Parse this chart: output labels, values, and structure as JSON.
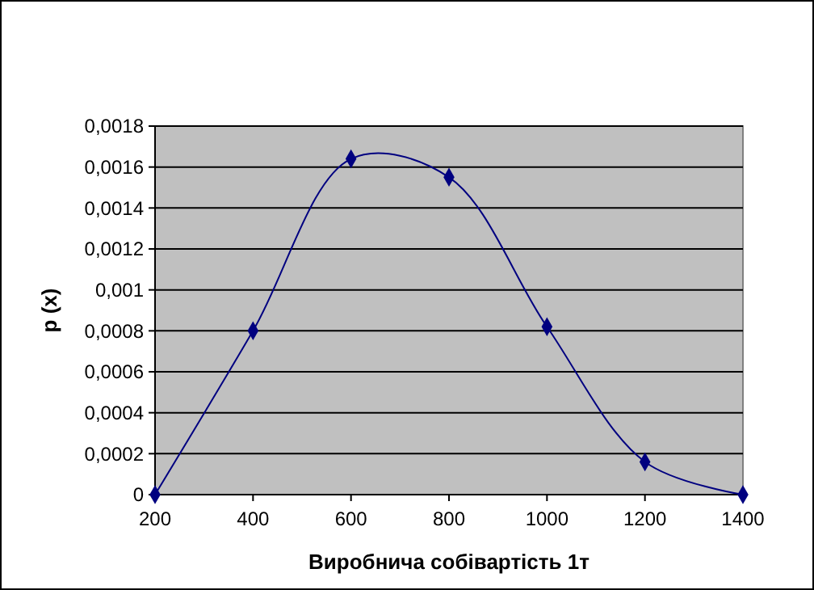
{
  "chart_data": {
    "type": "line",
    "xlabel": "Виробнича собівартість 1т",
    "ylabel": "p (x)",
    "x": [
      200,
      400,
      600,
      800,
      1000,
      1200,
      1400
    ],
    "series": [
      {
        "color": "#000080",
        "values": [
          0,
          0.0008,
          0.00164,
          0.00155,
          0.00082,
          0.00016,
          0
        ]
      }
    ],
    "xlim": [
      200,
      1400
    ],
    "xticks": [
      200,
      400,
      600,
      800,
      1000,
      1200,
      1400
    ],
    "ylim": [
      0,
      0.0018
    ],
    "yticks": [
      0,
      {
        "value": 0.0002,
        "label": "0,0002"
      },
      {
        "value": 0.0004,
        "label": "0,0004"
      },
      {
        "value": 0.0006,
        "label": "0,0006"
      },
      {
        "value": 0.0008,
        "label": "0,0008"
      },
      {
        "value": 0.001,
        "label": "0,001"
      },
      {
        "value": 0.0012,
        "label": "0,0012"
      },
      {
        "value": 0.0014,
        "label": "0,0014"
      },
      {
        "value": 0.0016,
        "label": "0,0016"
      },
      {
        "value": 0.0018,
        "label": "0,0018"
      }
    ],
    "grid": "y",
    "marker": "diamond",
    "line_style": "solid"
  }
}
